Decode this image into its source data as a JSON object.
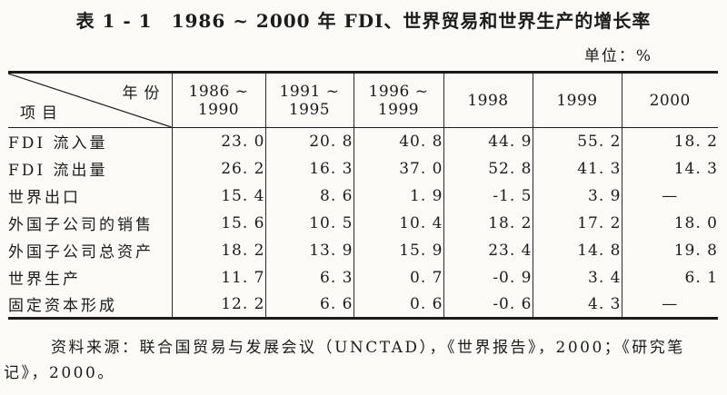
{
  "title": "表 1 - 1　1986 ~ 2000 年 FDI、世界贸易和世界生产的增长率",
  "unit_label": "单位：%",
  "table": {
    "corner": {
      "top_right": "年份",
      "bottom_left": "项目"
    },
    "columns": [
      "1986 ~ 1990",
      "1991 ~ 1995",
      "1996 ~ 1999",
      "1998",
      "1999",
      "2000"
    ],
    "rows": [
      {
        "label": "FDI 流入量",
        "values": [
          "23. 0",
          "20. 8",
          "40. 8",
          "44. 9",
          "55. 2",
          "18. 2"
        ]
      },
      {
        "label": "FDI 流出量",
        "values": [
          "26. 2",
          "16. 3",
          "37. 0",
          "52. 8",
          "41. 3",
          "14. 3"
        ]
      },
      {
        "label": "世界出口",
        "values": [
          "15. 4",
          "8. 6",
          "1. 9",
          "-1. 5",
          "3. 9",
          "—"
        ]
      },
      {
        "label": "外国子公司的销售",
        "values": [
          "15. 6",
          "10. 5",
          "10. 4",
          "18. 2",
          "17. 2",
          "18. 0"
        ]
      },
      {
        "label": "外国子公司总资产",
        "values": [
          "18. 2",
          "13. 9",
          "15. 9",
          "23. 4",
          "14. 8",
          "19. 8"
        ]
      },
      {
        "label": "世界生产",
        "values": [
          "11. 7",
          "6. 3",
          "0. 7",
          "-0. 9",
          "3. 4",
          "6. 1"
        ]
      },
      {
        "label": "固定资本形成",
        "values": [
          "12. 2",
          "6. 6",
          "0. 6",
          "-0. 6",
          "4. 3",
          "—"
        ]
      }
    ]
  },
  "source": {
    "lines": [
      "资料来源：联合国贸易与发展会议（UNCTAD），《世界报告》，2000；《研究笔",
      "记》，2000。"
    ]
  },
  "colors": {
    "ink": "#1b1b1b",
    "paper": "#fbfaf6"
  }
}
